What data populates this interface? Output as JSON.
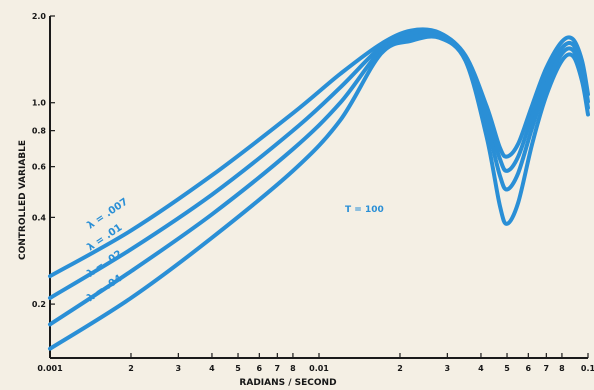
{
  "chart_data": {
    "type": "line",
    "xlabel": "RADIANS / SECOND",
    "ylabel": "CONTROLLED VARIABLE",
    "xscale": "log",
    "yscale": "log",
    "xlim": [
      0.001,
      0.1
    ],
    "ylim": [
      0.13,
      2.0
    ],
    "x_ticks": [
      {
        "value": 0.001,
        "label": "0.001"
      },
      {
        "value": 0.002,
        "label": "2"
      },
      {
        "value": 0.003,
        "label": "3"
      },
      {
        "value": 0.004,
        "label": "4"
      },
      {
        "value": 0.005,
        "label": "5"
      },
      {
        "value": 0.006,
        "label": "6"
      },
      {
        "value": 0.007,
        "label": "7"
      },
      {
        "value": 0.008,
        "label": "8"
      },
      {
        "value": 0.01,
        "label": "0.01"
      },
      {
        "value": 0.02,
        "label": "2"
      },
      {
        "value": 0.03,
        "label": "3"
      },
      {
        "value": 0.04,
        "label": "4"
      },
      {
        "value": 0.05,
        "label": "5"
      },
      {
        "value": 0.06,
        "label": "6"
      },
      {
        "value": 0.07,
        "label": "7"
      },
      {
        "value": 0.08,
        "label": "8"
      },
      {
        "value": 0.1,
        "label": "0.1"
      }
    ],
    "y_ticks": [
      {
        "value": 0.2,
        "label": "0.2"
      },
      {
        "value": 0.4,
        "label": "0.4"
      },
      {
        "value": 0.6,
        "label": "0.6"
      },
      {
        "value": 0.8,
        "label": "0.8"
      },
      {
        "value": 1.0,
        "label": "1.0"
      },
      {
        "value": 2.0,
        "label": "2.0"
      }
    ],
    "grid": false,
    "line_color": "#2a8fd6",
    "annotation": "T = 100",
    "series": [
      {
        "name": "λ = .007",
        "x": [
          0.001,
          0.002,
          0.004,
          0.008,
          0.012,
          0.017,
          0.022,
          0.028,
          0.035,
          0.042,
          0.047,
          0.05,
          0.055,
          0.062,
          0.07,
          0.08,
          0.088,
          0.095,
          0.1
        ],
        "y": [
          0.25,
          0.36,
          0.56,
          0.92,
          1.26,
          1.6,
          1.78,
          1.75,
          1.46,
          0.97,
          0.7,
          0.65,
          0.72,
          0.98,
          1.32,
          1.63,
          1.66,
          1.4,
          1.07
        ]
      },
      {
        "name": "λ = .01",
        "x": [
          0.001,
          0.002,
          0.004,
          0.008,
          0.012,
          0.017,
          0.022,
          0.028,
          0.035,
          0.042,
          0.047,
          0.05,
          0.055,
          0.062,
          0.07,
          0.08,
          0.088,
          0.095,
          0.1
        ],
        "y": [
          0.21,
          0.31,
          0.48,
          0.8,
          1.13,
          1.56,
          1.74,
          1.74,
          1.44,
          0.91,
          0.64,
          0.58,
          0.65,
          0.9,
          1.24,
          1.55,
          1.59,
          1.33,
          1.01
        ]
      },
      {
        "name": "λ = .02",
        "x": [
          0.001,
          0.002,
          0.004,
          0.008,
          0.012,
          0.017,
          0.022,
          0.028,
          0.035,
          0.042,
          0.047,
          0.05,
          0.055,
          0.062,
          0.07,
          0.08,
          0.088,
          0.095,
          0.1
        ],
        "y": [
          0.17,
          0.26,
          0.41,
          0.69,
          1.0,
          1.52,
          1.69,
          1.71,
          1.42,
          0.84,
          0.56,
          0.5,
          0.57,
          0.82,
          1.15,
          1.48,
          1.52,
          1.26,
          0.96
        ]
      },
      {
        "name": "λ = .04",
        "x": [
          0.001,
          0.002,
          0.004,
          0.008,
          0.012,
          0.017,
          0.022,
          0.028,
          0.035,
          0.042,
          0.047,
          0.05,
          0.055,
          0.062,
          0.07,
          0.08,
          0.088,
          0.095,
          0.1
        ],
        "y": [
          0.14,
          0.21,
          0.34,
          0.58,
          0.87,
          1.48,
          1.64,
          1.68,
          1.4,
          0.76,
          0.44,
          0.38,
          0.45,
          0.72,
          1.06,
          1.4,
          1.45,
          1.19,
          0.91
        ]
      }
    ]
  }
}
